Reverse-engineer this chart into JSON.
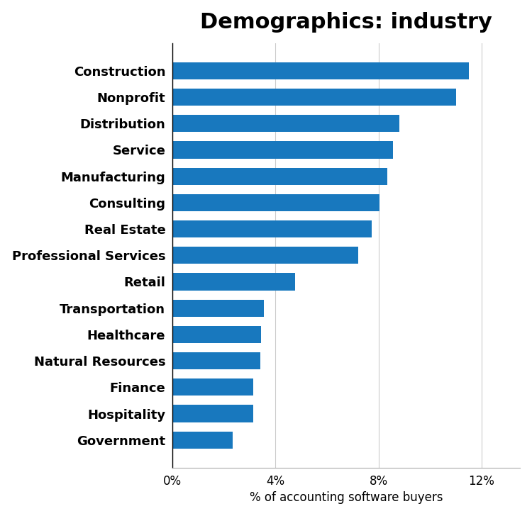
{
  "title": "Demographics: industry",
  "xlabel": "% of accounting software buyers",
  "categories": [
    "Construction",
    "Nonprofit",
    "Distribution",
    "Service",
    "Manufacturing",
    "Consulting",
    "Real Estate",
    "Professional Services",
    "Retail",
    "Transportation",
    "Healthcare",
    "Natural Resources",
    "Finance",
    "Hospitality",
    "Government"
  ],
  "values": [
    11.5,
    11.0,
    8.8,
    8.55,
    8.35,
    8.05,
    7.75,
    7.2,
    4.75,
    3.55,
    3.45,
    3.4,
    3.15,
    3.15,
    2.35
  ],
  "bar_color": "#1878be",
  "xlim": [
    0,
    13.5
  ],
  "xticks": [
    0,
    4,
    8,
    12
  ],
  "xticklabels": [
    "0%",
    "4%",
    "8%",
    "12%"
  ],
  "background_color": "#ffffff",
  "title_fontsize": 22,
  "label_fontsize": 13,
  "tick_fontsize": 12,
  "xlabel_fontsize": 12
}
